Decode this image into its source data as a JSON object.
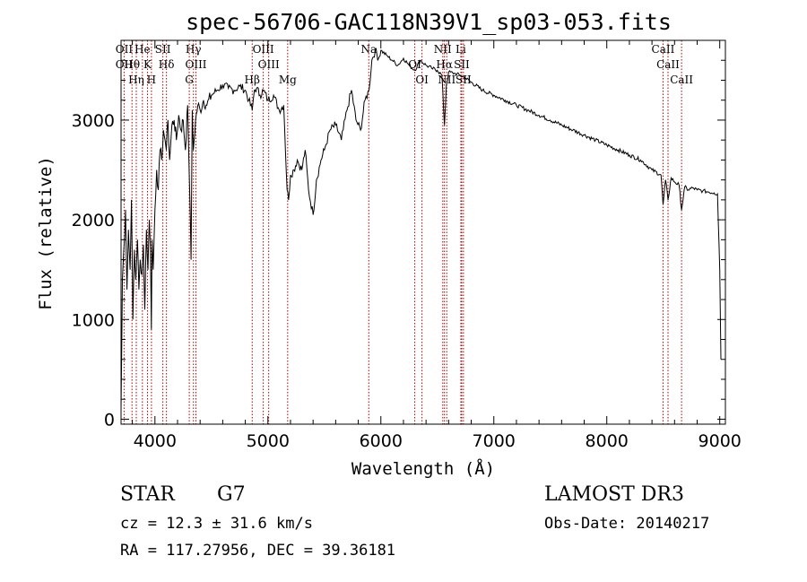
{
  "chart_data": {
    "type": "line",
    "title": "spec-56706-GAC118N39V1_sp03-053.fits",
    "xlabel": "Wavelength (Å)",
    "ylabel": "Flux (relative)",
    "xlim": [
      3700,
      9050
    ],
    "ylim": [
      -50,
      3800
    ],
    "x_ticks": [
      4000,
      5000,
      6000,
      7000,
      8000,
      9000
    ],
    "y_ticks": [
      0,
      1000,
      2000,
      3000
    ],
    "x_tick_labels": [
      "4000",
      "5000",
      "6000",
      "7000",
      "8000",
      "9000"
    ],
    "y_tick_labels": [
      "0",
      "1000",
      "2000",
      "3000"
    ],
    "series": [
      {
        "name": "flux",
        "x": [
          3700,
          3712,
          3725,
          3740,
          3752,
          3765,
          3780,
          3792,
          3805,
          3818,
          3830,
          3845,
          3858,
          3870,
          3885,
          3898,
          3910,
          3925,
          3938,
          3950,
          3960,
          3968,
          3975,
          3985,
          4000,
          4015,
          4030,
          4045,
          4060,
          4075,
          4090,
          4101,
          4115,
          4130,
          4150,
          4170,
          4190,
          4210,
          4230,
          4250,
          4270,
          4290,
          4305,
          4320,
          4330,
          4340,
          4360,
          4380,
          4400,
          4430,
          4460,
          4500,
          4550,
          4600,
          4650,
          4700,
          4750,
          4800,
          4830,
          4861,
          4880,
          4900,
          4930,
          4960,
          5000,
          5050,
          5100,
          5140,
          5170,
          5183,
          5200,
          5230,
          5260,
          5300,
          5330,
          5360,
          5400,
          5430,
          5470,
          5500,
          5550,
          5600,
          5650,
          5700,
          5740,
          5780,
          5820,
          5860,
          5895,
          5920,
          5950,
          5980,
          6000,
          6050,
          6100,
          6150,
          6200,
          6250,
          6300,
          6350,
          6400,
          6450,
          6500,
          6540,
          6563,
          6580,
          6600,
          6650,
          6700,
          6750,
          6800,
          6900,
          7000,
          7100,
          7200,
          7300,
          7400,
          7500,
          7600,
          7700,
          7800,
          7900,
          8000,
          8100,
          8200,
          8300,
          8400,
          8480,
          8498,
          8520,
          8542,
          8570,
          8600,
          8640,
          8662,
          8690,
          8720,
          8760,
          8800,
          8850,
          8900,
          8950,
          8980,
          9000,
          9010
        ],
        "y": [
          100,
          1400,
          1700,
          2100,
          1300,
          1900,
          1500,
          2200,
          1000,
          1700,
          1400,
          1800,
          1300,
          1600,
          1450,
          1750,
          1100,
          1900,
          1500,
          2000,
          1700,
          900,
          1800,
          1500,
          2100,
          2500,
          2300,
          2700,
          2600,
          2900,
          2800,
          2700,
          3000,
          2600,
          2950,
          3000,
          2800,
          3050,
          2900,
          3000,
          2700,
          3150,
          2400,
          1600,
          3100,
          2700,
          3000,
          3150,
          3100,
          3200,
          3150,
          3250,
          3300,
          3350,
          3320,
          3300,
          3340,
          3300,
          3200,
          3100,
          3300,
          3320,
          3250,
          3300,
          3200,
          3250,
          3100,
          3150,
          2300,
          2200,
          2450,
          2500,
          2600,
          2500,
          2700,
          2300,
          2050,
          2400,
          2600,
          2700,
          2900,
          2950,
          2800,
          3100,
          3300,
          3000,
          2900,
          3200,
          3300,
          3600,
          3700,
          3620,
          3700,
          3650,
          3600,
          3550,
          3620,
          3550,
          3500,
          3600,
          3550,
          3520,
          3500,
          3450,
          2950,
          3350,
          3480,
          3470,
          3450,
          3420,
          3380,
          3300,
          3250,
          3200,
          3150,
          3100,
          3050,
          3000,
          2950,
          2900,
          2850,
          2800,
          2750,
          2700,
          2650,
          2600,
          2500,
          2450,
          2150,
          2400,
          2200,
          2420,
          2380,
          2350,
          2100,
          2330,
          2300,
          2320,
          2300,
          2290,
          2280,
          2270,
          2260,
          1500,
          600
        ]
      }
    ],
    "spectral_lines": [
      {
        "wl": 3727,
        "labels": [
          "OII",
          "OII"
        ]
      },
      {
        "wl": 3797,
        "labels": [
          "Hθ"
        ]
      },
      {
        "wl": 3835,
        "labels": [
          "Hη"
        ]
      },
      {
        "wl": 3889,
        "labels": [
          "He"
        ]
      },
      {
        "wl": 3934,
        "labels": [
          "K"
        ]
      },
      {
        "wl": 3969,
        "labels": [
          "H"
        ]
      },
      {
        "wl": 4070,
        "labels": [
          "SII"
        ]
      },
      {
        "wl": 4102,
        "labels": [
          "Hδ"
        ]
      },
      {
        "wl": 4304,
        "labels": [
          "G"
        ]
      },
      {
        "wl": 4341,
        "labels": [
          "Hγ"
        ]
      },
      {
        "wl": 4363,
        "labels": [
          "OIII"
        ]
      },
      {
        "wl": 4861,
        "labels": [
          "Hβ"
        ]
      },
      {
        "wl": 4959,
        "labels": [
          "OIII"
        ]
      },
      {
        "wl": 5007,
        "labels": [
          "OIII"
        ]
      },
      {
        "wl": 5175,
        "labels": [
          "Mg"
        ]
      },
      {
        "wl": 5893,
        "labels": [
          "Na"
        ]
      },
      {
        "wl": 6300,
        "labels": [
          "OI"
        ]
      },
      {
        "wl": 6364,
        "labels": [
          "OI"
        ]
      },
      {
        "wl": 6548,
        "labels": [
          "NII"
        ]
      },
      {
        "wl": 6563,
        "labels": [
          "Hα"
        ]
      },
      {
        "wl": 6583,
        "labels": [
          "NII"
        ]
      },
      {
        "wl": 6708,
        "labels": [
          "Li"
        ]
      },
      {
        "wl": 6716,
        "labels": [
          "SII"
        ]
      },
      {
        "wl": 6731,
        "labels": [
          "SII"
        ]
      },
      {
        "wl": 8498,
        "labels": [
          "CaII"
        ]
      },
      {
        "wl": 8542,
        "labels": [
          "CaII"
        ]
      },
      {
        "wl": 8662,
        "labels": [
          "CaII"
        ]
      }
    ],
    "line_color": "#000000",
    "marker_color": "#b00000"
  },
  "info": {
    "object_class": "STAR",
    "subclass": "G7",
    "velocity": "cz = 12.3 ± 31.6 km/s",
    "coords": "RA = 117.27956, DEC =  39.36181",
    "survey": "LAMOST DR3",
    "obs_date": "Obs-Date: 20140217"
  }
}
